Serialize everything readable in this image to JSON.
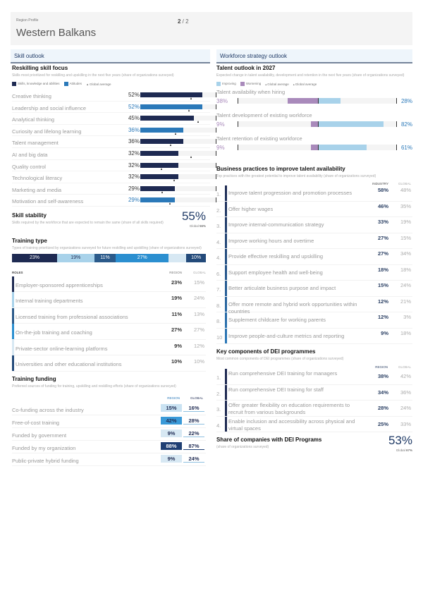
{
  "header": {
    "kicker": "Region Profile",
    "title": "Western Balkans",
    "page_current": "2",
    "page_sep": " / ",
    "page_total": "2"
  },
  "colors": {
    "dark_navy": "#1e2a52",
    "mid_blue": "#2b79b9",
    "light_blue": "#a8d2ea",
    "pale_blue": "#d7e8f3",
    "purple": "#a98abb",
    "steel": "#2b5a8a"
  },
  "left": {
    "section_title": "Skill outlook",
    "reskilling": {
      "title": "Reskilling skill focus",
      "subtitle": "Skills most prioritized for reskilling and upskilling in the next five years (share of organizations surveyed)",
      "legend": [
        "Skills, knowledge and abilities",
        "Attitudes",
        "Global average"
      ],
      "items": [
        {
          "label": "Creative thinking",
          "value": 52,
          "display": "52%",
          "type": "ska",
          "global": 42
        },
        {
          "label": "Leadership and social influence",
          "value": 52,
          "display": "52%",
          "type": "att",
          "global": 40
        },
        {
          "label": "Analytical thinking",
          "value": 45,
          "display": "45%",
          "type": "ska",
          "global": 48
        },
        {
          "label": "Curiosity and lifelong learning",
          "value": 36,
          "display": "36%",
          "type": "att",
          "global": 29
        },
        {
          "label": "Talent management",
          "value": 36,
          "display": "36%",
          "type": "ska",
          "global": 25
        },
        {
          "label": "AI and big data",
          "value": 32,
          "display": "32%",
          "type": "ska",
          "global": 42
        },
        {
          "label": "Quality control",
          "value": 32,
          "display": "32%",
          "type": "ska",
          "global": 17
        },
        {
          "label": "Technological literacy",
          "value": 32,
          "display": "32%",
          "type": "ska",
          "global": 28
        },
        {
          "label": "Marketing and media",
          "value": 29,
          "display": "29%",
          "type": "ska",
          "global": 18
        },
        {
          "label": "Motivation and self-awareness",
          "value": 29,
          "display": "29%",
          "type": "att",
          "global": 24
        }
      ]
    },
    "skill_stability": {
      "title": "Skill stability",
      "subtitle": "Skills required by the workforce that are expected to remain the same (share of all skills required)",
      "value": "55%",
      "global_label": "Global",
      "global_value": "56%"
    },
    "training_type": {
      "title": "Training type",
      "subtitle": "Types of training prioritized by organizations surveyed for future reskilling and upskilling (share of organizations surveyed)",
      "segments": [
        {
          "value": 23,
          "display": "23%",
          "color": "#1e2a52",
          "text": "#fff"
        },
        {
          "value": 19,
          "display": "19%",
          "color": "#a8d2ea",
          "text": "#1e2a52"
        },
        {
          "value": 11,
          "display": "11%",
          "color": "#2b5a8a",
          "text": "#fff"
        },
        {
          "value": 27,
          "display": "27%",
          "color": "#2b8fd0",
          "text": "#fff"
        },
        {
          "value": 9,
          "display": "",
          "color": "#d7e8f3",
          "text": "#1e2a52"
        },
        {
          "value": 10,
          "display": "10%",
          "color": "#234a7a",
          "text": "#fff"
        }
      ],
      "col_roles": "ROLES",
      "col_region": "REGION",
      "col_global": "GLOBAL",
      "rows": [
        {
          "label": "Employer-sponsored apprenticeships",
          "region": "23%",
          "global": "15%",
          "color": "#1e2a52"
        },
        {
          "label": "Internal training departments",
          "region": "19%",
          "global": "24%",
          "color": "#a8d2ea"
        },
        {
          "label": "Licensed training from professional associations",
          "region": "11%",
          "global": "13%",
          "color": "#2b5a8a"
        },
        {
          "label": "On-the-job training and coaching",
          "region": "27%",
          "global": "27%",
          "color": "#2b8fd0"
        },
        {
          "label": "Private-sector online-learning platforms",
          "region": "9%",
          "global": "12%",
          "color": "#d7e8f3"
        },
        {
          "label": "Universities and other educational institutions",
          "region": "10%",
          "global": "10%",
          "color": "#234a7a"
        }
      ]
    },
    "training_funding": {
      "title": "Training funding",
      "subtitle": "Preferred sources of funding for training, upskilling and reskilling efforts (share of organizations surveyed)",
      "col_region": "REGION",
      "col_global": "GLOBAL",
      "rows": [
        {
          "label": "Co-funding across the industry",
          "region": "15%",
          "global": "16%",
          "bg": "#c9e2f2",
          "fg": "#1e2a52"
        },
        {
          "label": "Free-of-cost training",
          "region": "42%",
          "global": "28%",
          "bg": "#3a9ad8",
          "fg": "#1e2a52"
        },
        {
          "label": "Funded by government",
          "region": "9%",
          "global": "22%",
          "bg": "#d7e8f3",
          "fg": "#1e2a52"
        },
        {
          "label": "Funded by my organization",
          "region": "88%",
          "global": "87%",
          "bg": "#1f3f73",
          "fg": "#ffffff"
        },
        {
          "label": "Public-private hybrid funding",
          "region": "9%",
          "global": "24%",
          "bg": "#d7e8f3",
          "fg": "#1e2a52"
        }
      ]
    }
  },
  "right": {
    "section_title": "Workforce strategy outlook",
    "talent_outlook": {
      "title": "Talent outlook in 2027",
      "subtitle": "Expected change in talent availability, development and retention in the next five years (share of organizations surveyed)",
      "legend": [
        "Improving",
        "Worsening",
        "Global average",
        "Global average"
      ],
      "items": [
        {
          "label": "Talent availability when hiring",
          "worsening": 38,
          "worsening_display": "38%",
          "improving": 28,
          "improving_display": "28%"
        },
        {
          "label": "Talent development of existing workforce",
          "worsening": 9,
          "worsening_display": "9%",
          "improving": 82,
          "improving_display": "82%"
        },
        {
          "label": "Talent retention of existing workforce",
          "worsening": 9,
          "worsening_display": "9%",
          "improving": 61,
          "improving_display": "61%"
        }
      ]
    },
    "practices": {
      "title": "Business practices to improve talent availability",
      "subtitle": "Top practices with the greatest potential to improve talent availability (share of organizations surveyed)",
      "col_industry": "INDUSTRY",
      "col_global": "GLOBAL",
      "rows": [
        {
          "rank": "1.",
          "label": "Improve talent progression and promotion processes",
          "industry": "58%",
          "global": "48%"
        },
        {
          "rank": "2.",
          "label": "Offer higher wages",
          "industry": "46%",
          "global": "35%"
        },
        {
          "rank": "3.",
          "label": "Improve internal-communication strategy",
          "industry": "33%",
          "global": "19%"
        },
        {
          "rank": "4.",
          "label": "Improve working hours and overtime",
          "industry": "27%",
          "global": "15%"
        },
        {
          "rank": "4.",
          "label": "Provide effective reskilling and upskilling",
          "industry": "27%",
          "global": "34%"
        },
        {
          "rank": "6.",
          "label": "Support employee health and well-being",
          "industry": "18%",
          "global": "18%"
        },
        {
          "rank": "7.",
          "label": "Better articulate business purpose and impact",
          "industry": "15%",
          "global": "24%"
        },
        {
          "rank": "8.",
          "label": "Offer more remote and hybrid work opportunities within countries",
          "industry": "12%",
          "global": "21%"
        },
        {
          "rank": "8.",
          "label": "Supplement childcare for working parents",
          "industry": "12%",
          "global": "3%"
        },
        {
          "rank": "10",
          "label": "Improve people-and-culture metrics and reporting",
          "industry": "9%",
          "global": "18%"
        }
      ]
    },
    "dei": {
      "title": "Key components of DEI programmes",
      "subtitle": "Most common components of DEI programmes (share of organizations surveyed)",
      "col_region": "REGION",
      "col_global": "GLOBAL",
      "rows": [
        {
          "rank": "1.",
          "label": "Run comprehensive DEI training for managers",
          "region": "38%",
          "global": "42%"
        },
        {
          "rank": "2.",
          "label": "Run comprehensive DEI training for staff",
          "region": "34%",
          "global": "36%"
        },
        {
          "rank": "3.",
          "label": "Offer greater flexibility on education requirements to recruit from various backgrounds",
          "region": "28%",
          "global": "24%"
        },
        {
          "rank": "4.",
          "label": "Enable inclusion and accessibility across physical and virtual spaces",
          "region": "25%",
          "global": "33%"
        }
      ]
    },
    "dei_share": {
      "title": "Share of companies with DEI Programs",
      "subtitle": "(share of organizations surveyed)",
      "value": "53%",
      "global_label": "Global",
      "global_value": "67%"
    }
  }
}
